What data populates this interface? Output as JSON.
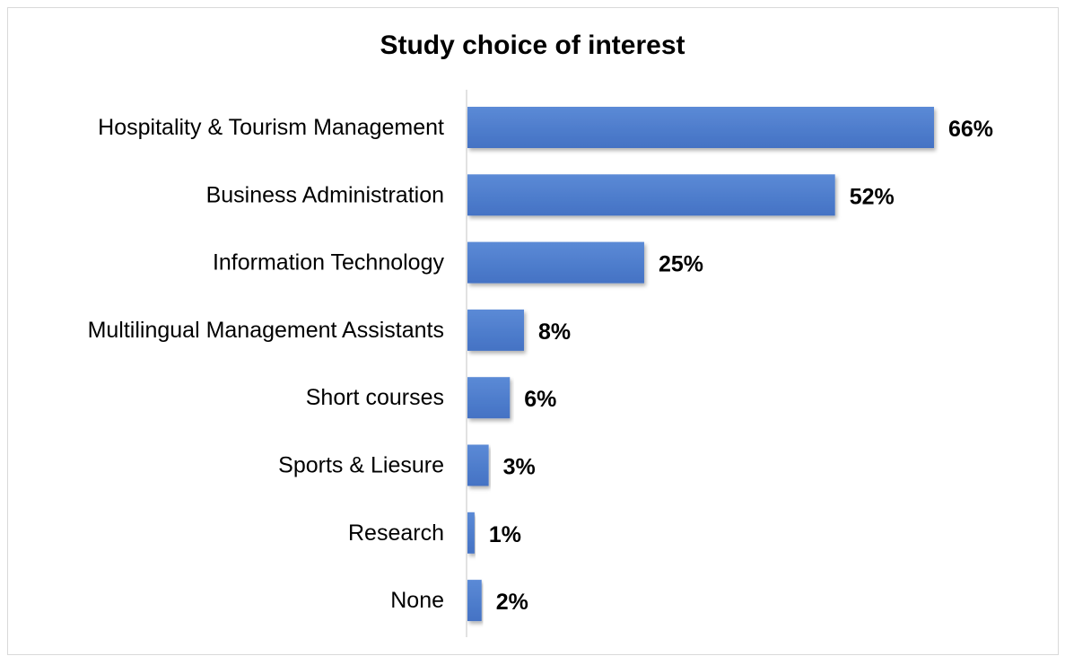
{
  "chart_data": {
    "type": "bar",
    "orientation": "horizontal",
    "title": "Study choice of interest",
    "categories": [
      "Hospitality & Tourism Management",
      "Business Administration",
      "Information Technology",
      "Multilingual Management Assistants",
      "Short courses",
      "Sports & Liesure",
      "Research",
      "None"
    ],
    "values": [
      66,
      52,
      25,
      8,
      6,
      3,
      1,
      2
    ],
    "data_labels": [
      "66%",
      "52%",
      "25%",
      "8%",
      "6%",
      "3%",
      "1%",
      "2%"
    ],
    "value_unit": "%",
    "xlabel": "",
    "ylabel": "",
    "xlim": [
      0,
      70
    ],
    "grid": false,
    "legend": "none",
    "bar_color": "#4472c4",
    "bar_color_light": "#5b8ad6"
  }
}
